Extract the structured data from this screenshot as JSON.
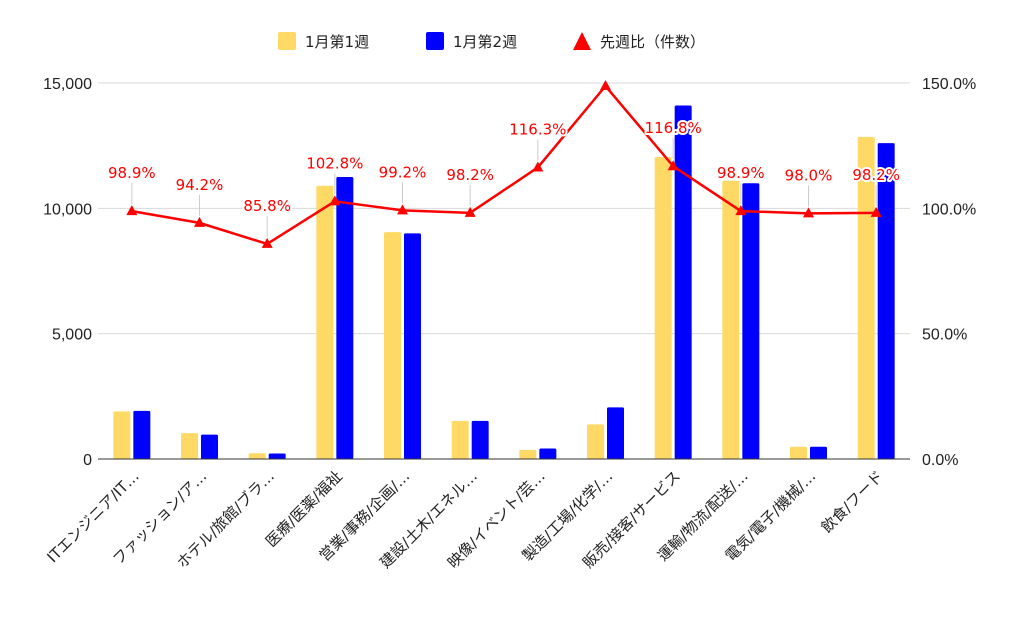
{
  "chart_data": {
    "type": "bar",
    "title": "",
    "xlabel": "",
    "ylabel": "",
    "categories": [
      "ITエンジニア/IT…",
      "ファッション/ア…",
      "ホテル/旅館/ブラ…",
      "医療/医薬/福祉",
      "営業/事務/企画/…",
      "建設/土木/エネル…",
      "映像/イベント/芸…",
      "製造/工場/化学/…",
      "販売/接客/サービス",
      "運輸/物流/配送/…",
      "電気/電子/機械/…",
      "飲食/フード"
    ],
    "series": [
      {
        "name": "1月第1週",
        "type": "bar",
        "axis": "left",
        "color": "#FFD966",
        "values": [
          1900,
          1030,
          230,
          10900,
          9050,
          1520,
          360,
          1380,
          12050,
          11100,
          490,
          12850
        ]
      },
      {
        "name": "1月第2週",
        "type": "bar",
        "axis": "left",
        "color": "#0000FF",
        "values": [
          1920,
          970,
          220,
          11250,
          9000,
          1520,
          420,
          2060,
          14100,
          11000,
          490,
          12600
        ]
      },
      {
        "name": "先週比（件数）",
        "type": "line",
        "axis": "right",
        "color": "#FF0000",
        "marker": "triangle",
        "values": [
          98.9,
          94.2,
          85.8,
          102.8,
          99.2,
          98.2,
          116.3,
          148.8,
          116.8,
          98.9,
          98.0,
          98.2
        ],
        "labels": [
          "98.9%",
          "94.2%",
          "85.8%",
          "102.8%",
          "99.2%",
          "98.2%",
          "116.3%",
          "",
          "116.8%",
          "98.9%",
          "98.0%",
          "98.2%"
        ]
      }
    ],
    "y_left": {
      "min": 0,
      "max": 15000,
      "ticks": [
        "0",
        "5,000",
        "10,000",
        "15,000"
      ],
      "tick_values": [
        0,
        5000,
        10000,
        15000
      ]
    },
    "y_right": {
      "min": 0,
      "max": 150,
      "ticks": [
        "0.0%",
        "50.0%",
        "100.0%",
        "150.0%"
      ],
      "tick_values": [
        0,
        50,
        100,
        150
      ]
    },
    "grid": true,
    "legend": "top-center"
  }
}
